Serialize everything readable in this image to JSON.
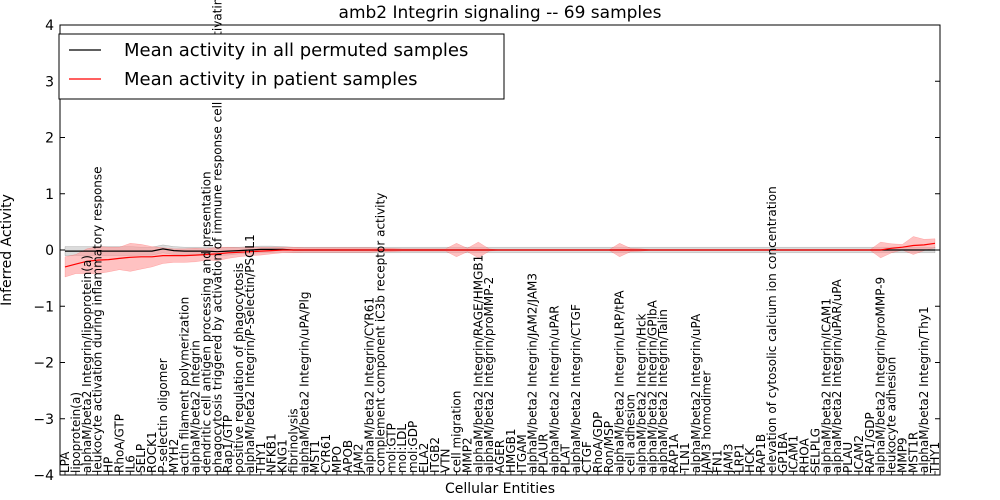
{
  "chart_data": {
    "type": "line",
    "title": "amb2 Integrin signaling -- 69 samples",
    "xlabel": "Cellular Entities",
    "ylabel": "Inferred Activity",
    "ylim": [
      -4,
      4
    ],
    "yticks": [
      -4,
      -3,
      -2,
      -1,
      0,
      1,
      2,
      3,
      4
    ],
    "grid": false,
    "legend_position": "top-left",
    "categories": [
      "LPA",
      "lipoprotein(a)",
      "alphaM/beta2 Integrin/lipoprotein(a)",
      "leukocyte activation during inflammatory response",
      "HP",
      "RhoA/GTP",
      "IL6",
      "SELP",
      "ROCK1",
      "P-selectin oligomer",
      "MYH2",
      "actin filament polymerization",
      "alphaM/beta2 Integrin",
      "dendritic cell antigen processing and presentation",
      "phagocytosis triggered by activation of immune response cell surface activating receptor",
      "Rap1/GTP",
      "positive regulation of phagocytosis",
      "alphaM/beta2 Integrin/P-Selectin/PSGL1",
      "THY1",
      "NFKB1",
      "KNG1",
      "fibrinolysis",
      "alphaM/beta2 Integrin/uPA/Plg",
      "MST1",
      "CYR61",
      "MPO",
      "APOB",
      "JAM2",
      "alphaM/beta2 Integrin/CYR61",
      "complement component iC3b receptor activity",
      "mol:GTP",
      "mol:LDL",
      "mol:GDP",
      "ELA2",
      "ITGB2",
      "VTN",
      "cell migration",
      "MMP2",
      "alphaM/beta2 Integrin/RAGE/HMGB1",
      "alphaM/beta2 Integrin/proMMP-2",
      "AGER",
      "HMGB1",
      "ITGAM",
      "alphaM/beta2 Integrin/JAM2/JAM3",
      "PLAUR",
      "alphaM/beta2 Integrin/uPAR",
      "PLAT",
      "alphaM/beta2 Integrin/CTGF",
      "CTGF",
      "RhoA/GDP",
      "Ron/MSP",
      "alphaM/beta2 Integrin/LRP/tPA",
      "cell adhesion",
      "alphaM/beta2 Integrin/Hck",
      "alphaM/beta2 Integrin/GPIbA",
      "alphaM/beta2 Integrin/Talin",
      "RAP1A",
      "TLN1",
      "alphaM/beta2 Integrin/uPA",
      "JAM3 homodimer",
      "FN1",
      "JAM3",
      "LRP1",
      "HCK",
      "RAP1B",
      "elevation of cytosolic calcium ion concentration",
      "GP1BA",
      "ICAM1",
      "RHOA",
      "SELPLG",
      "alphaM/beta2 Integrin/ICAM1",
      "alphaM/beta2 Integrin/uPAR/uPA",
      "PLAU",
      "ICAM2",
      "RAP1/GDP",
      "alphaM/beta2 Integrin/proMMP-9",
      "leukocyte adhesion",
      "MMP9",
      "MST1R",
      "alphaM/beta2 Integrin/Thy1",
      "THY1"
    ],
    "series": [
      {
        "name": "Mean activity in all permuted samples",
        "color": "#000000",
        "band_color": "#bfbfbf",
        "values": [
          -0.02,
          -0.02,
          -0.02,
          -0.02,
          -0.02,
          -0.02,
          -0.02,
          -0.02,
          -0.02,
          0.02,
          -0.01,
          -0.02,
          -0.02,
          -0.02,
          -0.03,
          -0.02,
          -0.01,
          0.0,
          0.01,
          0.01,
          0.01,
          0.0,
          0.0,
          0.0,
          0.0,
          0.0,
          0.0,
          0.0,
          0.0,
          0.0,
          0.0,
          0.0,
          0.0,
          0.0,
          0.0,
          0.0,
          0.0,
          0.0,
          0.0,
          0.0,
          0.0,
          0.0,
          0.0,
          0.0,
          0.0,
          0.0,
          0.0,
          0.0,
          0.0,
          0.0,
          0.0,
          0.0,
          0.0,
          0.0,
          0.0,
          0.0,
          0.0,
          0.0,
          0.0,
          0.0,
          0.0,
          0.0,
          0.0,
          0.0,
          0.0,
          0.0,
          0.0,
          0.0,
          0.0,
          0.0,
          0.0,
          0.0,
          0.0,
          0.0,
          0.0,
          0.0,
          0.0,
          0.0,
          0.0,
          0.0,
          0.0
        ],
        "band": [
          0.08,
          0.08,
          0.08,
          0.08,
          0.08,
          0.08,
          0.08,
          0.07,
          0.07,
          0.07,
          0.07,
          0.07,
          0.07,
          0.07,
          0.07,
          0.07,
          0.06,
          0.06,
          0.06,
          0.06,
          0.05,
          0.05,
          0.05,
          0.05,
          0.05,
          0.05,
          0.05,
          0.05,
          0.05,
          0.05,
          0.05,
          0.05,
          0.05,
          0.05,
          0.05,
          0.05,
          0.05,
          0.05,
          0.05,
          0.05,
          0.05,
          0.05,
          0.05,
          0.05,
          0.05,
          0.05,
          0.05,
          0.05,
          0.05,
          0.05,
          0.05,
          0.05,
          0.05,
          0.05,
          0.05,
          0.05,
          0.05,
          0.05,
          0.05,
          0.05,
          0.05,
          0.05,
          0.05,
          0.05,
          0.05,
          0.05,
          0.05,
          0.05,
          0.05,
          0.05,
          0.05,
          0.05,
          0.05,
          0.05,
          0.05,
          0.05,
          0.05,
          0.05,
          0.05,
          0.05,
          0.05
        ]
      },
      {
        "name": "Mean activity in patient samples",
        "color": "#ff0000",
        "band_color": "#ff9999",
        "values": [
          -0.3,
          -0.25,
          -0.2,
          -0.18,
          -0.17,
          -0.15,
          -0.13,
          -0.12,
          -0.12,
          -0.1,
          -0.1,
          -0.1,
          -0.09,
          -0.08,
          -0.07,
          -0.05,
          -0.04,
          -0.03,
          -0.02,
          -0.01,
          0.0,
          0.0,
          0.0,
          0.0,
          0.0,
          0.0,
          0.0,
          0.0,
          0.0,
          0.0,
          0.0,
          0.0,
          0.0,
          0.0,
          0.0,
          0.0,
          0.0,
          0.0,
          0.0,
          0.0,
          0.0,
          0.0,
          0.0,
          0.0,
          0.0,
          0.0,
          0.0,
          0.0,
          0.0,
          0.0,
          0.0,
          0.0,
          0.0,
          0.0,
          0.0,
          0.0,
          0.0,
          0.0,
          0.0,
          0.0,
          0.0,
          0.0,
          0.0,
          0.0,
          0.0,
          0.0,
          0.0,
          0.0,
          0.0,
          0.0,
          0.0,
          0.0,
          0.0,
          0.0,
          0.0,
          0.0,
          0.03,
          0.05,
          0.08,
          0.09,
          0.12
        ],
        "band": [
          0.18,
          0.17,
          0.22,
          0.24,
          0.22,
          0.2,
          0.25,
          0.22,
          0.18,
          0.14,
          0.12,
          0.12,
          0.12,
          0.1,
          0.12,
          0.1,
          0.08,
          0.07,
          0.07,
          0.06,
          0.05,
          0.05,
          0.04,
          0.04,
          0.04,
          0.04,
          0.04,
          0.04,
          0.04,
          0.03,
          0.03,
          0.02,
          0.02,
          0.02,
          0.02,
          0.02,
          0.12,
          0.03,
          0.14,
          0.02,
          0.0,
          0.0,
          0.0,
          0.0,
          0.0,
          0.0,
          0.0,
          0.0,
          0.0,
          0.0,
          0.0,
          0.12,
          0.03,
          0.02,
          0.0,
          0.0,
          0.0,
          0.0,
          0.0,
          0.0,
          0.0,
          0.0,
          0.0,
          0.0,
          0.0,
          0.0,
          0.0,
          0.0,
          0.0,
          0.0,
          0.0,
          0.0,
          0.0,
          0.0,
          0.0,
          0.14,
          0.08,
          0.05,
          0.16,
          0.1,
          0.08
        ]
      }
    ]
  }
}
